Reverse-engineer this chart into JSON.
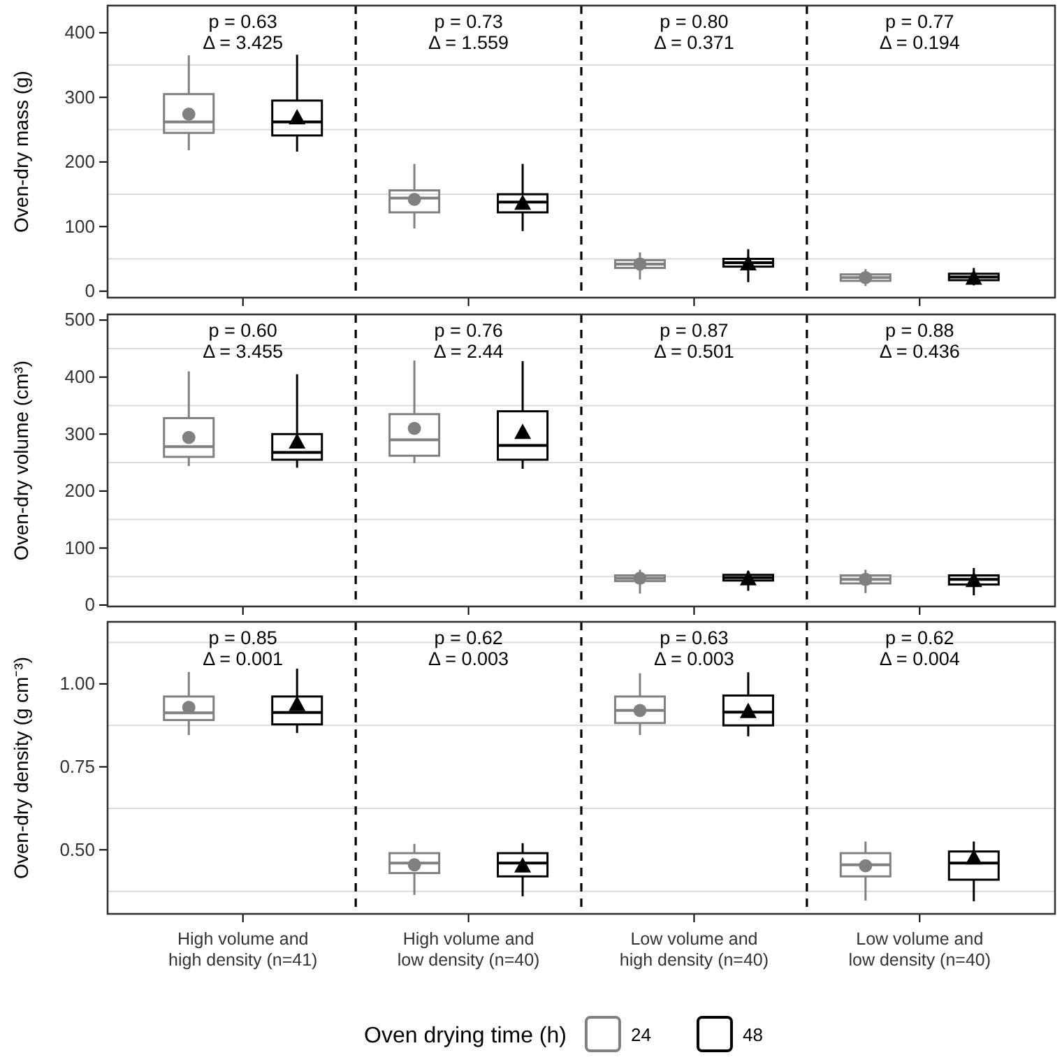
{
  "chart_data": [
    {
      "type": "box",
      "ylabel": "Oven-dry mass (g)",
      "ylim": [
        -10,
        442
      ],
      "yticks": [
        0,
        {
          "value": 50,
          "label": null
        },
        100,
        {
          "value": 150,
          "label": null
        },
        200,
        {
          "value": 250,
          "label": null
        },
        300,
        {
          "value": 350,
          "label": null
        },
        400
      ],
      "grid": "y",
      "tick_labels": "y",
      "annotations": [
        "p = 0.63\nΔ = 3.425",
        "p = 0.73\nΔ = 1.559",
        "p = 0.80\nΔ = 0.371",
        "p = 0.77\nΔ = 0.194"
      ],
      "series": [
        {
          "color": "#808080",
          "marker": "circle",
          "boxes": [
            {
              "low": 218,
              "q1": 245,
              "median": 262,
              "q3": 305,
              "high": 365,
              "mean": 274
            },
            {
              "low": 97,
              "q1": 122,
              "median": 144,
              "q3": 156,
              "high": 197,
              "mean": 142
            },
            {
              "low": 18,
              "q1": 36,
              "median": 42,
              "q3": 48,
              "high": 60,
              "mean": 42
            },
            {
              "low": 8,
              "q1": 16,
              "median": 21,
              "q3": 26,
              "high": 34,
              "mean": 21
            }
          ]
        },
        {
          "color": "#000000",
          "marker": "triangle",
          "boxes": [
            {
              "low": 216,
              "q1": 241,
              "median": 262,
              "q3": 295,
              "high": 366,
              "mean": 270
            },
            {
              "low": 93,
              "q1": 122,
              "median": 138,
              "q3": 150,
              "high": 197,
              "mean": 138
            },
            {
              "low": 14,
              "q1": 38,
              "median": 44,
              "q3": 50,
              "high": 65,
              "mean": 44
            },
            {
              "low": 9,
              "q1": 17,
              "median": 22,
              "q3": 27,
              "high": 36,
              "mean": 22
            }
          ]
        }
      ]
    },
    {
      "type": "box",
      "ylabel": "Oven-dry volume (cm³)",
      "ylim": [
        -2.5,
        510
      ],
      "yticks": [
        0,
        {
          "value": 50,
          "label": null
        },
        100,
        {
          "value": 150,
          "label": null
        },
        200,
        {
          "value": 250,
          "label": null
        },
        300,
        {
          "value": 350,
          "label": null
        },
        400,
        {
          "value": 450,
          "label": null
        },
        500
      ],
      "grid": "y",
      "tick_labels": "y",
      "annotations": [
        "p = 0.60\nΔ = 3.455",
        "p = 0.76\nΔ = 2.44",
        "p = 0.87\nΔ = 0.501",
        "p = 0.88\nΔ = 0.436"
      ],
      "series": [
        {
          "color": "#808080",
          "marker": "circle",
          "boxes": [
            {
              "low": 244,
              "q1": 260,
              "median": 278,
              "q3": 328,
              "high": 410,
              "mean": 294
            },
            {
              "low": 249,
              "q1": 262,
              "median": 290,
              "q3": 335,
              "high": 429,
              "mean": 310
            },
            {
              "low": 20,
              "q1": 42,
              "median": 47,
              "q3": 52,
              "high": 62,
              "mean": 47
            },
            {
              "low": 21,
              "q1": 38,
              "median": 45,
              "q3": 52,
              "high": 62,
              "mean": 45
            }
          ]
        },
        {
          "color": "#000000",
          "marker": "triangle",
          "boxes": [
            {
              "low": 241,
              "q1": 255,
              "median": 268,
              "q3": 300,
              "high": 405,
              "mean": 288
            },
            {
              "low": 239,
              "q1": 255,
              "median": 280,
              "q3": 340,
              "high": 428,
              "mean": 305
            },
            {
              "low": 25,
              "q1": 43,
              "median": 48,
              "q3": 53,
              "high": 60,
              "mean": 48
            },
            {
              "low": 17,
              "q1": 36,
              "median": 45,
              "q3": 52,
              "high": 65,
              "mean": 45
            }
          ]
        }
      ]
    },
    {
      "type": "box",
      "ylabel": "Oven-dry density (g cm⁻³)",
      "categories": [
        "High volume and\nhigh density (n=41)",
        "High volume and\nlow density (n=40)",
        "Low volume and\nhigh density (n=40)",
        "Low volume and\nlow density (n=40)"
      ],
      "ylim": [
        0.307,
        1.187
      ],
      "yticks": [
        {
          "value": 0.375,
          "label": null
        },
        {
          "value": 0.5,
          "label": "0.50"
        },
        {
          "value": 0.625,
          "label": null
        },
        {
          "value": 0.75,
          "label": "0.75"
        },
        {
          "value": 0.875,
          "label": null
        },
        {
          "value": 1.0,
          "label": "1.00"
        },
        {
          "value": 1.125,
          "label": null
        }
      ],
      "grid": "y",
      "legend": "bottom",
      "legend_title": "Oven drying time (h)",
      "annotations": [
        "p = 0.85\nΔ = 0.001",
        "p = 0.62\nΔ = 0.003",
        "p = 0.63\nΔ = 0.003",
        "p = 0.62\nΔ = 0.004"
      ],
      "series": [
        {
          "name": "24",
          "color": "#808080",
          "marker": "circle",
          "boxes": [
            {
              "low": 0.846,
              "q1": 0.891,
              "median": 0.913,
              "q3": 0.962,
              "high": 1.036,
              "mean": 0.929
            },
            {
              "low": 0.364,
              "q1": 0.43,
              "median": 0.46,
              "q3": 0.49,
              "high": 0.518,
              "mean": 0.455
            },
            {
              "low": 0.846,
              "q1": 0.882,
              "median": 0.92,
              "q3": 0.962,
              "high": 1.032,
              "mean": 0.92
            },
            {
              "low": 0.347,
              "q1": 0.42,
              "median": 0.455,
              "q3": 0.49,
              "high": 0.525,
              "mean": 0.452
            }
          ]
        },
        {
          "name": "48",
          "color": "#000000",
          "marker": "triangle",
          "boxes": [
            {
              "low": 0.852,
              "q1": 0.878,
              "median": 0.914,
              "q3": 0.962,
              "high": 1.046,
              "mean": 0.941
            },
            {
              "low": 0.36,
              "q1": 0.42,
              "median": 0.46,
              "q3": 0.49,
              "high": 0.52,
              "mean": 0.455
            },
            {
              "low": 0.842,
              "q1": 0.875,
              "median": 0.915,
              "q3": 0.965,
              "high": 1.035,
              "mean": 0.92
            },
            {
              "low": 0.345,
              "q1": 0.41,
              "median": 0.46,
              "q3": 0.495,
              "high": 0.525,
              "mean": 0.479
            }
          ]
        }
      ]
    }
  ]
}
